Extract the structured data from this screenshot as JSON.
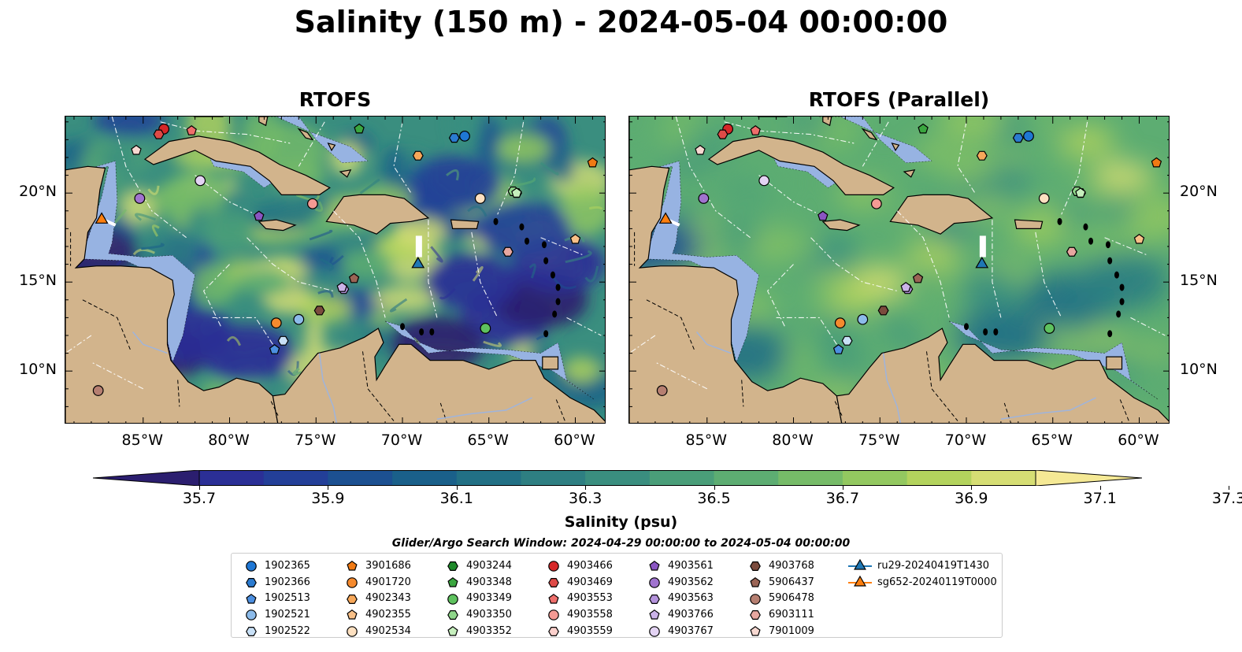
{
  "title": "Salinity (150 m) - 2024-05-04 00:00:00",
  "panels": [
    {
      "title": "RTOFS",
      "variant": "high-contrast"
    },
    {
      "title": "RTOFS (Parallel)",
      "variant": "smooth"
    }
  ],
  "lon_ticks": [
    "85°W",
    "80°W",
    "75°W",
    "70°W",
    "65°W",
    "60°W"
  ],
  "lat_ticks": [
    "20°N",
    "15°N",
    "10°N"
  ],
  "map_extent": {
    "lon": [
      -89.5,
      -58.2
    ],
    "lat": [
      7.0,
      24.3
    ]
  },
  "colorbar": {
    "title": "Salinity (psu)",
    "labels": [
      "35.7",
      "35.9",
      "36.1",
      "36.3",
      "36.5",
      "36.7",
      "36.9",
      "37.1",
      "37.3"
    ],
    "colors": [
      "#2b1e6f",
      "#2b2f96",
      "#233f98",
      "#1c5091",
      "#1a608a",
      "#227085",
      "#2e7f82",
      "#3a8e7f",
      "#4a9e79",
      "#5dad72",
      "#76bb68",
      "#93c860",
      "#b3d35d",
      "#d6de74",
      "#f5e995"
    ],
    "extend": "both"
  },
  "search_window": "Glider/Argo Search Window: 2024-04-29 00:00:00 to 2024-05-04 00:00:00",
  "legend": [
    {
      "id": "1902365",
      "marker": "circle",
      "color": "#1f77d4"
    },
    {
      "id": "1902366",
      "marker": "hexagon",
      "color": "#2b7bd0"
    },
    {
      "id": "1902513",
      "marker": "pentagon",
      "color": "#4c8fe0"
    },
    {
      "id": "1902521",
      "marker": "circle",
      "color": "#8cbbea"
    },
    {
      "id": "1902522",
      "marker": "hexagon",
      "color": "#c8e0f6"
    },
    {
      "id": "3901686",
      "marker": "pentagon",
      "color": "#f07a14"
    },
    {
      "id": "4901720",
      "marker": "circle",
      "color": "#f58a2e"
    },
    {
      "id": "4902343",
      "marker": "hexagon",
      "color": "#f7a85a"
    },
    {
      "id": "4902355",
      "marker": "pentagon",
      "color": "#f8c088"
    },
    {
      "id": "4902534",
      "marker": "circle",
      "color": "#fde0c0"
    },
    {
      "id": "4903244",
      "marker": "hexagon",
      "color": "#1f8a2a"
    },
    {
      "id": "4903348",
      "marker": "pentagon",
      "color": "#3aa63f"
    },
    {
      "id": "4903349",
      "marker": "circle",
      "color": "#5ec25e"
    },
    {
      "id": "4903350",
      "marker": "hexagon",
      "color": "#8fd68a"
    },
    {
      "id": "4903352",
      "marker": "pentagon",
      "color": "#c6efbd"
    },
    {
      "id": "4903466",
      "marker": "circle",
      "color": "#d62728"
    },
    {
      "id": "4903469",
      "marker": "hexagon",
      "color": "#de4a47"
    },
    {
      "id": "4903553",
      "marker": "pentagon",
      "color": "#ee6e6b"
    },
    {
      "id": "4903558",
      "marker": "circle",
      "color": "#f49a94"
    },
    {
      "id": "4903559",
      "marker": "hexagon",
      "color": "#fbd0cc"
    },
    {
      "id": "4903561",
      "marker": "pentagon",
      "color": "#8a55c2"
    },
    {
      "id": "4903562",
      "marker": "circle",
      "color": "#a073cf"
    },
    {
      "id": "4903563",
      "marker": "hexagon",
      "color": "#b493dc"
    },
    {
      "id": "4903766",
      "marker": "pentagon",
      "color": "#cbb3e8"
    },
    {
      "id": "4903767",
      "marker": "circle",
      "color": "#e3d3f3"
    },
    {
      "id": "4903768",
      "marker": "hexagon",
      "color": "#7b4b3d"
    },
    {
      "id": "5906437",
      "marker": "pentagon",
      "color": "#9a6455"
    },
    {
      "id": "5906478",
      "marker": "circle",
      "color": "#b67f71"
    },
    {
      "id": "6903111",
      "marker": "hexagon",
      "color": "#e7a7a0"
    },
    {
      "id": "7901009",
      "marker": "pentagon",
      "color": "#f7d8d1"
    },
    {
      "id": "ru29-20240419T1430",
      "marker": "triangle",
      "color": "#1f77b4",
      "line": true
    },
    {
      "id": "sg652-20240119T0000",
      "marker": "triangle",
      "color": "#ff7f0e",
      "line": true
    }
  ],
  "observations": [
    {
      "id": "1902365",
      "lon": -66.4,
      "lat": 23.2
    },
    {
      "id": "1902366",
      "lon": -67.0,
      "lat": 23.1
    },
    {
      "id": "1902513",
      "lon": -77.4,
      "lat": 11.2
    },
    {
      "id": "1902521",
      "lon": -76.0,
      "lat": 12.9
    },
    {
      "id": "1902522",
      "lon": -76.9,
      "lat": 11.7
    },
    {
      "id": "3901686",
      "lon": -59.0,
      "lat": 21.7
    },
    {
      "id": "4901720",
      "lon": -77.3,
      "lat": 12.7
    },
    {
      "id": "4902343",
      "lon": -69.1,
      "lat": 22.1
    },
    {
      "id": "4902355",
      "lon": -60.0,
      "lat": 17.4
    },
    {
      "id": "4902534",
      "lon": -65.5,
      "lat": 19.7
    },
    {
      "id": "4903244",
      "lon": -63.4,
      "lat": 20.0
    },
    {
      "id": "4903348",
      "lon": -72.5,
      "lat": 23.6
    },
    {
      "id": "4903349",
      "lon": -65.2,
      "lat": 12.4
    },
    {
      "id": "4903350",
      "lon": -63.6,
      "lat": 20.1
    },
    {
      "id": "4903352",
      "lon": -63.4,
      "lat": 20.0
    },
    {
      "id": "4903466",
      "lon": -83.8,
      "lat": 23.6
    },
    {
      "id": "4903469",
      "lon": -84.1,
      "lat": 23.3
    },
    {
      "id": "4903553",
      "lon": -82.2,
      "lat": 23.5
    },
    {
      "id": "4903558",
      "lon": -75.2,
      "lat": 19.4
    },
    {
      "id": "4903559",
      "lon": -63.9,
      "lat": 16.7
    },
    {
      "id": "4903561",
      "lon": -78.3,
      "lat": 18.7
    },
    {
      "id": "4903562",
      "lon": -85.2,
      "lat": 19.7
    },
    {
      "id": "4903563",
      "lon": -73.4,
      "lat": 14.6
    },
    {
      "id": "4903766",
      "lon": -73.5,
      "lat": 14.7
    },
    {
      "id": "4903767",
      "lon": -81.7,
      "lat": 20.7
    },
    {
      "id": "4903768",
      "lon": -74.8,
      "lat": 13.4
    },
    {
      "id": "5906437",
      "lon": -72.8,
      "lat": 15.2
    },
    {
      "id": "5906478",
      "lon": -87.6,
      "lat": 8.9
    },
    {
      "id": "6903111",
      "lon": -63.9,
      "lat": 16.7
    },
    {
      "id": "7901009",
      "lon": -85.4,
      "lat": 22.4
    },
    {
      "id": "ru29-20240419T1430",
      "lon": -69.1,
      "lat": 16.0
    },
    {
      "id": "sg652-20240119T0000",
      "lon": -87.4,
      "lat": 18.5
    }
  ]
}
